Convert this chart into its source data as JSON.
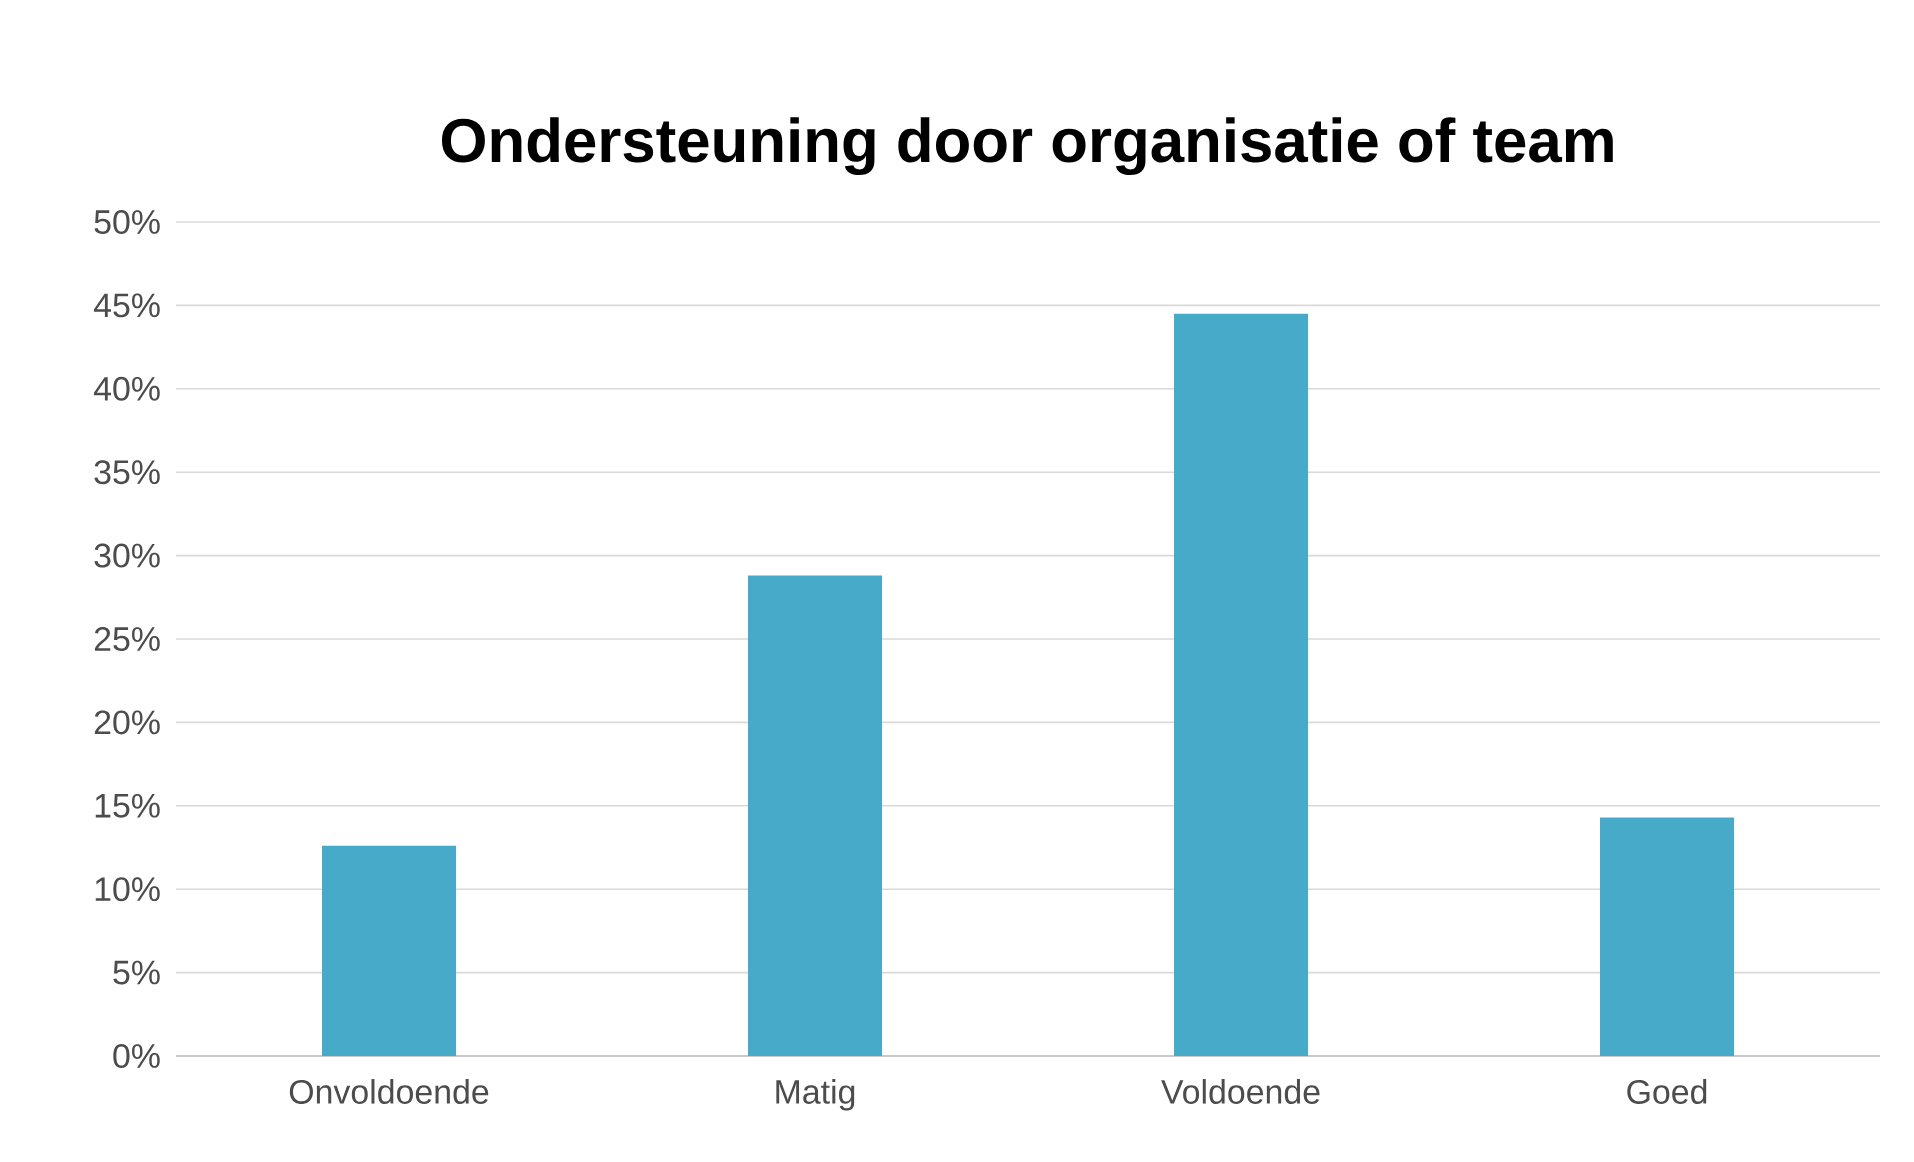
{
  "chart_data": {
    "type": "bar",
    "title": "Ondersteuning door organisatie of team",
    "categories": [
      "Onvoldoende",
      "Matig",
      "Voldoende",
      "Goed"
    ],
    "values": [
      12.6,
      28.8,
      44.5,
      14.3
    ],
    "color": "#46aac8",
    "ylim": [
      0,
      50
    ],
    "yticks": [
      {
        "value": 0,
        "label": "0%"
      },
      {
        "value": 5,
        "label": "5%"
      },
      {
        "value": 10,
        "label": "10%"
      },
      {
        "value": 15,
        "label": "15%"
      },
      {
        "value": 20,
        "label": "20%"
      },
      {
        "value": 25,
        "label": "25%"
      },
      {
        "value": 30,
        "label": "30%"
      },
      {
        "value": 35,
        "label": "35%"
      },
      {
        "value": 40,
        "label": "40%"
      },
      {
        "value": 45,
        "label": "45%"
      },
      {
        "value": 50,
        "label": "50%"
      }
    ],
    "grid": "y"
  }
}
